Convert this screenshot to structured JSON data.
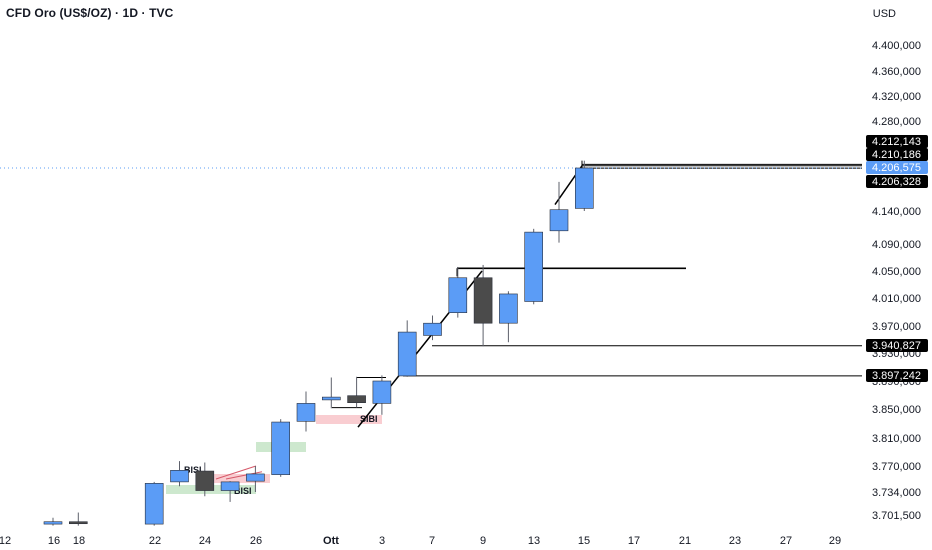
{
  "header": {
    "title": "CFD Oro (US$/OZ) · 1D · TVC",
    "currency": "USD"
  },
  "colors": {
    "up": "#5b9cf6",
    "down": "#4b4b4b",
    "wick": "#5d606b",
    "line": "#000000",
    "tag_black": "#000000",
    "tag_blue": "#5b9cf6",
    "bisi": "#c8e6c9",
    "sibi": "#f8c8cc"
  },
  "chart_data": {
    "type": "candlestick",
    "y_axis_ticks": [
      {
        "value": 4400000,
        "label": "4.400,000"
      },
      {
        "value": 4360000,
        "label": "4.360,000"
      },
      {
        "value": 4320000,
        "label": "4.320,000"
      },
      {
        "value": 4280000,
        "label": "4.280,000"
      },
      {
        "value": 4140000,
        "label": "4.140,000"
      },
      {
        "value": 4090000,
        "label": "4.090,000"
      },
      {
        "value": 4050000,
        "label": "4.050,000"
      },
      {
        "value": 4010000,
        "label": "4.010,000"
      },
      {
        "value": 3970000,
        "label": "3.970,000"
      },
      {
        "value": 3930000,
        "label": "3.930,000"
      },
      {
        "value": 3890000,
        "label": "3.890,000"
      },
      {
        "value": 3850000,
        "label": "3.850,000"
      },
      {
        "value": 3810000,
        "label": "3.810,000"
      },
      {
        "value": 3770000,
        "label": "3.770,000"
      },
      {
        "value": 3734000,
        "label": "3.734,000"
      },
      {
        "value": 3701500,
        "label": "3.701,500"
      }
    ],
    "x_axis_ticks": [
      {
        "label": "12",
        "bold": false
      },
      {
        "label": "16",
        "bold": false
      },
      {
        "label": "18",
        "bold": false
      },
      {
        "label": "22",
        "bold": false
      },
      {
        "label": "24",
        "bold": false
      },
      {
        "label": "26",
        "bold": false
      },
      {
        "label": "Ott",
        "bold": true
      },
      {
        "label": "3",
        "bold": false
      },
      {
        "label": "7",
        "bold": false
      },
      {
        "label": "9",
        "bold": false
      },
      {
        "label": "13",
        "bold": false
      },
      {
        "label": "15",
        "bold": false
      },
      {
        "label": "17",
        "bold": false
      },
      {
        "label": "21",
        "bold": false
      },
      {
        "label": "23",
        "bold": false
      },
      {
        "label": "27",
        "bold": false
      },
      {
        "label": "29",
        "bold": false
      }
    ],
    "price_tags": [
      {
        "label": "4.212,143",
        "value": 4212143,
        "style": "black"
      },
      {
        "label": "4.210,186",
        "value": 4210186,
        "style": "black"
      },
      {
        "label": "4.206,575",
        "value": 4206575,
        "style": "blue"
      },
      {
        "label": "4.206,328",
        "value": 4206328,
        "style": "black"
      },
      {
        "label": "3.940,827",
        "value": 3940827,
        "style": "black"
      },
      {
        "label": "3.897,242",
        "value": 3897242,
        "style": "black"
      }
    ],
    "candles": [
      {
        "date": "16",
        "open": 3690000,
        "high": 3698000,
        "low": 3688000,
        "close": 3693000
      },
      {
        "date": "18",
        "open": 3693000,
        "high": 3705000,
        "low": 3688000,
        "close": 3691000
      },
      {
        "date": "22",
        "open": 3690000,
        "high": 3748000,
        "low": 3688000,
        "close": 3746000
      },
      {
        "date": "23",
        "open": 3748000,
        "high": 3777000,
        "low": 3742000,
        "close": 3764000
      },
      {
        "date": "24",
        "open": 3763000,
        "high": 3775000,
        "low": 3728000,
        "close": 3736000
      },
      {
        "date": "25",
        "open": 3736000,
        "high": 3749000,
        "low": 3720000,
        "close": 3748000
      },
      {
        "date": "26",
        "open": 3749000,
        "high": 3770000,
        "low": 3734000,
        "close": 3759000
      },
      {
        "date": "29",
        "open": 3758000,
        "high": 3836000,
        "low": 3755000,
        "close": 3832000
      },
      {
        "date": "30",
        "open": 3833000,
        "high": 3875000,
        "low": 3819000,
        "close": 3858000
      },
      {
        "date": "1",
        "open": 3863000,
        "high": 3895000,
        "low": 3851000,
        "close": 3867000
      },
      {
        "date": "2",
        "open": 3869000,
        "high": 3896000,
        "low": 3852000,
        "close": 3859000
      },
      {
        "date": "3",
        "open": 3858000,
        "high": 3898000,
        "low": 3842000,
        "close": 3890000
      },
      {
        "date": "6",
        "open": 3897242,
        "high": 3978000,
        "low": 3896000,
        "close": 3961000
      },
      {
        "date": "7",
        "open": 3956000,
        "high": 3985000,
        "low": 3949000,
        "close": 3974000
      },
      {
        "date": "8",
        "open": 3989000,
        "high": 4056000,
        "low": 3982000,
        "close": 4040000
      },
      {
        "date": "9",
        "open": 4040000,
        "high": 4059000,
        "low": 3940000,
        "close": 3974000
      },
      {
        "date": "10",
        "open": 3974000,
        "high": 4020000,
        "low": 3946000,
        "close": 4016000
      },
      {
        "date": "13",
        "open": 4005000,
        "high": 4113000,
        "low": 4001000,
        "close": 4108000
      },
      {
        "date": "14",
        "open": 4110000,
        "high": 4185000,
        "low": 4092000,
        "close": 4142000
      },
      {
        "date": "15",
        "open": 4144000,
        "high": 4218000,
        "low": 4140000,
        "close": 4206575
      }
    ],
    "annotations": [
      "BISI",
      "BISI",
      "SIBI"
    ]
  }
}
